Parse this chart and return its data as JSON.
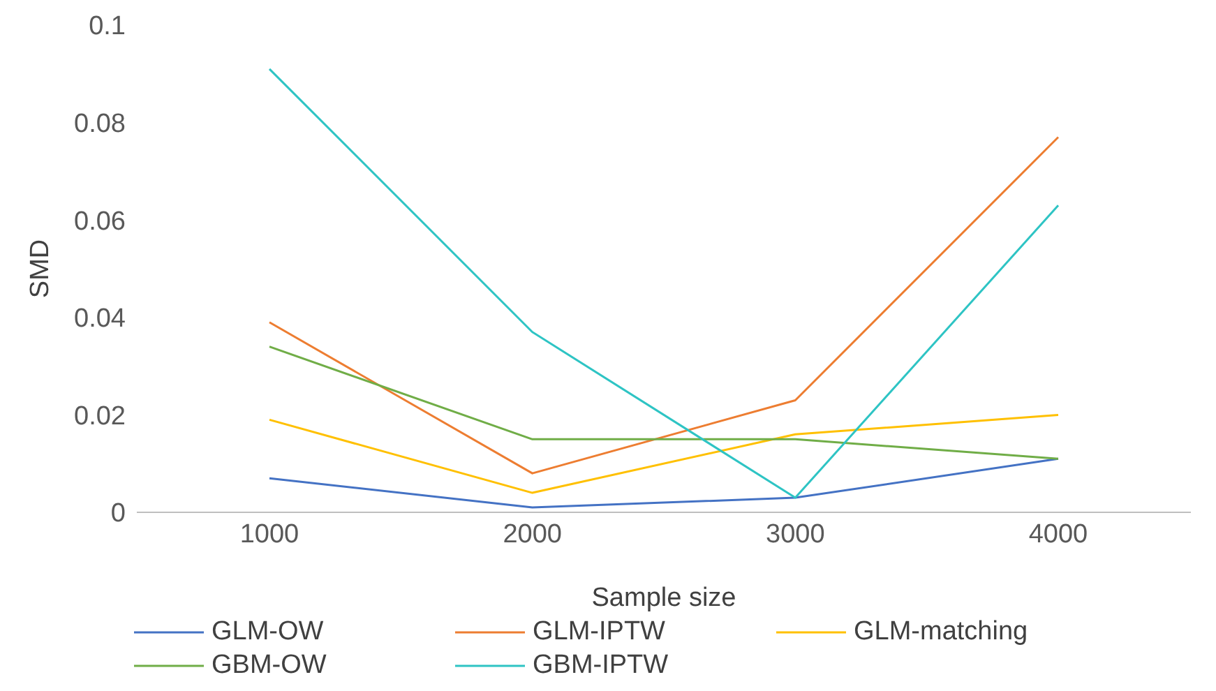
{
  "chart_data": {
    "type": "line",
    "xlabel": "Sample size",
    "ylabel": "SMD",
    "categories": [
      "1000",
      "2000",
      "3000",
      "4000"
    ],
    "series": [
      {
        "name": "GLM-OW",
        "color": "#4472c4",
        "values": [
          0.007,
          0.001,
          0.003,
          0.011
        ]
      },
      {
        "name": "GLM-IPTW",
        "color": "#ed7d31",
        "values": [
          0.039,
          0.008,
          0.023,
          0.077
        ]
      },
      {
        "name": "GLM-matching",
        "color": "#ffc000",
        "values": [
          0.019,
          0.004,
          0.016,
          0.02
        ]
      },
      {
        "name": "GBM-OW",
        "color": "#70ad47",
        "values": [
          0.034,
          0.015,
          0.015,
          0.011
        ]
      },
      {
        "name": "GBM-IPTW",
        "color": "#2ec4c4",
        "values": [
          0.091,
          0.037,
          0.003,
          0.063
        ]
      }
    ],
    "ylim": [
      0,
      0.1
    ],
    "yticks": [
      0,
      0.02,
      0.04,
      0.06,
      0.08,
      0.1
    ],
    "grid": false,
    "legend": "bottom",
    "marker": "none",
    "line_style": "solid"
  }
}
